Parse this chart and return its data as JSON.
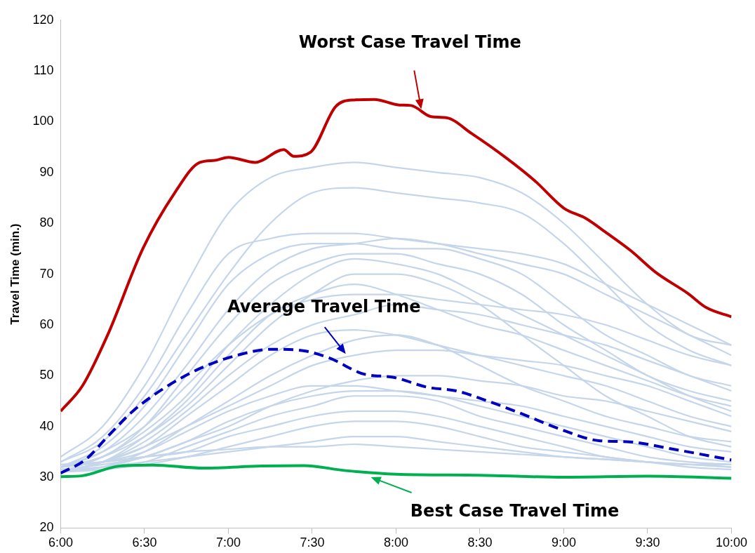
{
  "chart_data": {
    "type": "line",
    "ylabel": "Travel Time (min.)",
    "xlim": [
      6,
      10
    ],
    "xticks": [
      {
        "value": 6,
        "label": "6:00"
      },
      {
        "value": 6.5,
        "label": "6:30"
      },
      {
        "value": 7,
        "label": "7:00"
      },
      {
        "value": 7.5,
        "label": "7:30"
      },
      {
        "value": 8,
        "label": "8:00"
      },
      {
        "value": 8.5,
        "label": "8:30"
      },
      {
        "value": 9,
        "label": "9:00"
      },
      {
        "value": 9.5,
        "label": "9:30"
      },
      {
        "value": 10,
        "label": "10:00"
      }
    ],
    "ylim": [
      20,
      120
    ],
    "yticks": [
      20,
      30,
      40,
      50,
      60,
      70,
      80,
      90,
      100,
      110,
      120
    ],
    "grid": false,
    "legend": false,
    "marker": "none",
    "x": [
      6,
      6.25,
      6.5,
      6.75,
      7,
      7.25,
      7.5,
      7.75,
      8,
      8.25,
      8.5,
      8.75,
      9,
      9.25,
      9.5,
      9.75,
      10
    ],
    "series": [
      {
        "color": "#c00000",
        "x": [
          6,
          6.13,
          6.28,
          6.49,
          6.68,
          6.83,
          6.92,
          7,
          7.16,
          7.33,
          7.39,
          7.49,
          7.64,
          7.75,
          7.87,
          8.02,
          8.09,
          8.21,
          8.3,
          8.45,
          8.66,
          8.83,
          9,
          9.13,
          9.26,
          9.4,
          9.55,
          9.74,
          9.85,
          10
        ],
        "values": [
          43,
          48,
          58,
          75,
          86,
          92,
          92.4,
          93,
          92,
          94.5,
          93.2,
          94,
          103,
          104.3,
          104.4,
          103.3,
          103.2,
          101,
          100.8,
          97.7,
          92.8,
          88.3,
          83,
          81,
          78,
          74.6,
          70.3,
          66.2,
          63.4,
          61.6
        ]
      },
      {
        "color": "#0000c0",
        "line_style": "dashed",
        "x": [
          6,
          6.15,
          6.28,
          6.43,
          6.62,
          6.83,
          7.05,
          7.26,
          7.43,
          7.6,
          7.81,
          7.98,
          8.19,
          8.36,
          8.53,
          8.75,
          8.96,
          9.21,
          9.38,
          9.64,
          10
        ],
        "values": [
          30.8,
          33.5,
          38,
          43,
          47.6,
          51.4,
          54,
          55.2,
          55,
          53.5,
          50.3,
          49.7,
          47.7,
          47,
          45.2,
          42.5,
          39.7,
          37.2,
          37,
          35.6,
          33.4
        ]
      },
      {
        "color": "#00b050",
        "x": [
          6,
          6.13,
          6.35,
          6.55,
          6.85,
          7.2,
          7.45,
          7.7,
          8,
          8.5,
          9,
          9.5,
          10
        ],
        "values": [
          30.1,
          30.3,
          32.2,
          32.4,
          31.8,
          32.2,
          32.3,
          31.3,
          30.6,
          30.4,
          30,
          30.2,
          29.8
        ]
      },
      {
        "color": "#c5d5ea",
        "values": [
          34,
          40,
          52,
          68,
          82,
          89,
          91,
          92,
          91,
          90,
          89,
          86,
          80,
          72,
          64,
          58,
          56
        ]
      },
      {
        "color": "#c5d5ea",
        "values": [
          33,
          37,
          46,
          58,
          70,
          80,
          86,
          87,
          86,
          85,
          84,
          82,
          76,
          68,
          60,
          55,
          52
        ]
      },
      {
        "color": "#c5d5ea",
        "values": [
          32,
          36,
          44,
          56,
          68,
          74,
          76,
          76,
          75,
          75,
          73,
          70,
          64,
          58,
          54,
          50,
          48
        ]
      },
      {
        "color": "#c5d5ea",
        "values": [
          32,
          35,
          42,
          52,
          63,
          71,
          75,
          76,
          77,
          76,
          74,
          72,
          70,
          66,
          62,
          58,
          54
        ]
      },
      {
        "color": "#c5d5ea",
        "values": [
          32,
          34,
          40,
          50,
          60,
          68,
          72,
          74,
          74,
          72,
          70,
          66,
          60,
          55,
          50,
          47,
          45
        ]
      },
      {
        "color": "#c5d5ea",
        "values": [
          31,
          34,
          39,
          46,
          56,
          64,
          70,
          73,
          72,
          70,
          66,
          62,
          58,
          54,
          50,
          46,
          43
        ]
      },
      {
        "color": "#c5d5ea",
        "values": [
          31,
          33,
          38,
          45,
          54,
          62,
          66,
          68,
          66,
          63,
          60,
          58,
          55,
          52,
          49,
          46,
          44
        ]
      },
      {
        "color": "#c5d5ea",
        "values": [
          31,
          33,
          37,
          43,
          50,
          56,
          60,
          62,
          64,
          63,
          62,
          60,
          58,
          56,
          53,
          50,
          47
        ]
      },
      {
        "color": "#c5d5ea",
        "values": [
          31,
          33,
          36,
          42,
          48,
          54,
          58,
          59,
          58,
          56,
          54,
          52,
          50,
          48,
          45,
          42,
          40
        ]
      },
      {
        "color": "#c5d5ea",
        "values": [
          31,
          32,
          35,
          40,
          45,
          50,
          54,
          57,
          58,
          56,
          52,
          48,
          45,
          42,
          40,
          38,
          37
        ]
      },
      {
        "color": "#c5d5ea",
        "values": [
          32,
          33,
          35,
          39,
          43,
          46,
          48,
          48,
          47,
          46,
          45,
          44,
          42,
          40,
          38,
          36,
          35
        ]
      },
      {
        "color": "#c5d5ea",
        "values": [
          31.5,
          32.5,
          34,
          37,
          41,
          44,
          46,
          47,
          47,
          46,
          44,
          42,
          40,
          38,
          36,
          34,
          33
        ]
      },
      {
        "color": "#c5d5ea",
        "values": [
          31,
          32,
          33,
          36,
          39,
          42,
          44,
          46,
          46,
          45,
          42,
          40,
          38,
          36,
          34,
          33,
          32.5
        ]
      },
      {
        "color": "#c5d5ea",
        "values": [
          32.5,
          33,
          34,
          35,
          38,
          40,
          42,
          43,
          43,
          42,
          40,
          38,
          36,
          34,
          33,
          32.5,
          32
        ]
      },
      {
        "color": "#c5d5ea",
        "values": [
          31,
          31.5,
          32.5,
          34,
          36,
          38,
          40,
          41,
          41,
          40,
          38,
          36,
          35,
          34,
          33,
          32,
          31.5
        ]
      },
      {
        "color": "#c5d5ea",
        "values": [
          31.5,
          32,
          33,
          34,
          35,
          36,
          37,
          38,
          38,
          37,
          36,
          35,
          34,
          33.5,
          33,
          32.5,
          32
        ]
      },
      {
        "color": "#c5d5ea",
        "values": [
          32,
          33,
          34,
          35,
          35.5,
          36,
          36,
          36.5,
          36,
          35.5,
          35,
          34.5,
          34,
          33.5,
          33,
          32.5,
          32.5
        ]
      },
      {
        "color": "#c5d5ea",
        "values": [
          33,
          38,
          48,
          62,
          74,
          77,
          78,
          78,
          77,
          76,
          75,
          74,
          72,
          68,
          64,
          60,
          56
        ]
      },
      {
        "color": "#c5d5ea",
        "values": [
          32,
          35,
          40,
          48,
          56,
          62,
          65,
          66,
          66,
          65,
          64,
          63,
          62,
          60,
          57,
          54,
          52
        ]
      },
      {
        "color": "#c5d5ea",
        "values": [
          31,
          33,
          36,
          40,
          44,
          48,
          52,
          54,
          55,
          55,
          54,
          53,
          52,
          50,
          48,
          45,
          42
        ]
      },
      {
        "color": "#c5d5ea",
        "values": [
          31,
          32,
          34,
          37,
          40,
          44,
          47,
          49,
          50,
          50,
          49,
          48,
          46,
          45,
          43,
          41,
          39
        ]
      },
      {
        "color": "#c5d5ea",
        "values": [
          32,
          34,
          38,
          44,
          52,
          60,
          66,
          70,
          70,
          68,
          64,
          58,
          52,
          46,
          42,
          38,
          36
        ]
      }
    ],
    "annotations": [
      {
        "text": "Worst Case Travel Time",
        "x": 8.15,
        "y": 102.5
      },
      {
        "text": "Average Travel Time",
        "x": 7.7,
        "y": 54.3
      },
      {
        "text": "Best Case Travel Time",
        "x": 7.85,
        "y": 30
      }
    ]
  }
}
